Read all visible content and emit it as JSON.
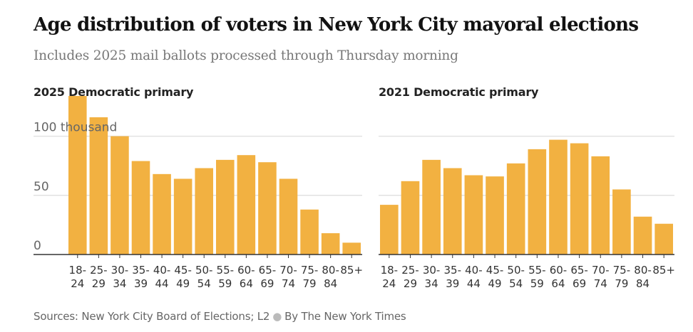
{
  "title": "Age distribution of voters in New York City mayoral elections",
  "subtitle": "Includes 2025 mail ballots processed through Thursday morning",
  "source": {
    "text": "Sources: New York City Board of Elections; L2",
    "byline": "By The New York Times"
  },
  "colors": {
    "bar": "#f2b141",
    "grid": "#e2e2e2",
    "axis": "#333333",
    "tick_text": "#666666"
  },
  "chart_data": [
    {
      "type": "bar",
      "title": "2025 Democratic primary",
      "categories": [
        "18-24",
        "25-29",
        "30-34",
        "35-39",
        "40-44",
        "45-49",
        "50-54",
        "55-59",
        "60-64",
        "65-69",
        "70-74",
        "75-79",
        "80-84",
        "85+"
      ],
      "category_labels": [
        [
          "18-",
          "24"
        ],
        [
          "25-",
          "29"
        ],
        [
          "30-",
          "34"
        ],
        [
          "35-",
          "39"
        ],
        [
          "40-",
          "44"
        ],
        [
          "45-",
          "49"
        ],
        [
          "50-",
          "54"
        ],
        [
          "55-",
          "59"
        ],
        [
          "60-",
          "64"
        ],
        [
          "65-",
          "69"
        ],
        [
          "70-",
          "74"
        ],
        [
          "75-",
          "79"
        ],
        [
          "80-",
          "84"
        ],
        [
          "85+",
          ""
        ]
      ],
      "values": [
        134,
        116,
        100,
        79,
        68,
        64,
        73,
        80,
        84,
        78,
        64,
        38,
        18,
        10
      ],
      "ylim": [
        0,
        140
      ],
      "yticks": [
        0,
        50,
        100
      ],
      "ytick_labels": [
        "0",
        "50",
        "100 thousand"
      ],
      "ylabel": "",
      "xlabel": "",
      "grid": true
    },
    {
      "type": "bar",
      "title": "2021 Democratic primary",
      "categories": [
        "18-24",
        "25-29",
        "30-34",
        "35-39",
        "40-44",
        "45-49",
        "50-54",
        "55-59",
        "60-64",
        "65-69",
        "70-74",
        "75-79",
        "80-84",
        "85+"
      ],
      "category_labels": [
        [
          "18-",
          "24"
        ],
        [
          "25-",
          "29"
        ],
        [
          "30-",
          "34"
        ],
        [
          "35-",
          "39"
        ],
        [
          "40-",
          "44"
        ],
        [
          "45-",
          "49"
        ],
        [
          "50-",
          "54"
        ],
        [
          "55-",
          "59"
        ],
        [
          "60-",
          "64"
        ],
        [
          "65-",
          "69"
        ],
        [
          "70-",
          "74"
        ],
        [
          "75-",
          "79"
        ],
        [
          "80-",
          "84"
        ],
        [
          "85+",
          ""
        ]
      ],
      "values": [
        42,
        62,
        80,
        73,
        67,
        66,
        77,
        89,
        97,
        94,
        83,
        55,
        32,
        26
      ],
      "ylim": [
        0,
        140
      ],
      "yticks": [
        0,
        50,
        100
      ],
      "ytick_labels": [
        "",
        "",
        ""
      ],
      "ylabel": "",
      "xlabel": "",
      "grid": true
    }
  ]
}
